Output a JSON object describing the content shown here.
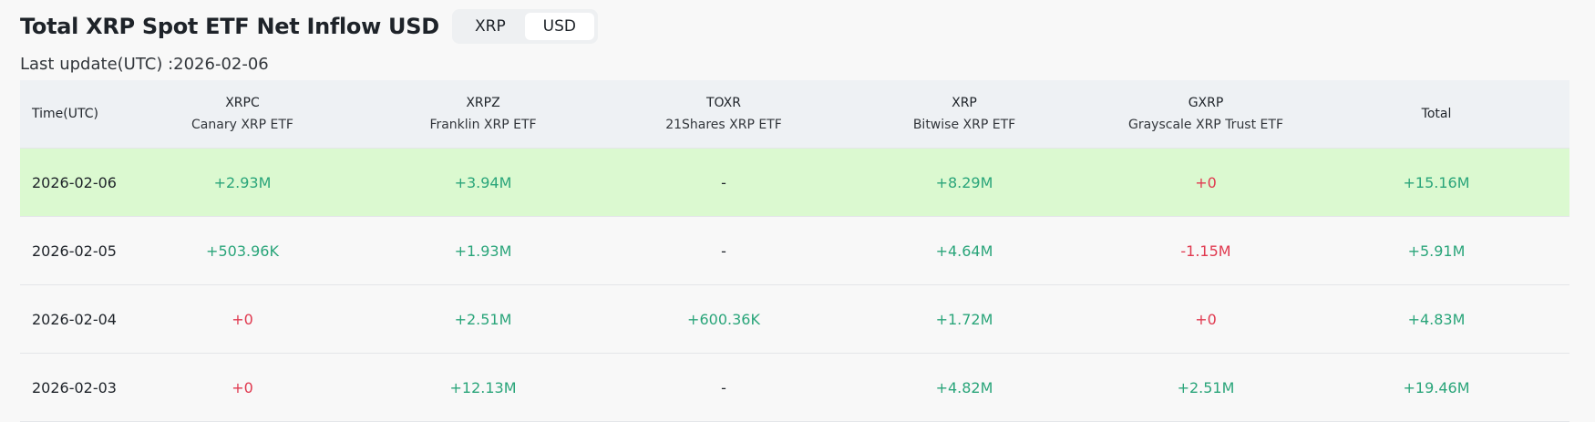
{
  "header": {
    "title": "Total XRP Spot ETF Net Inflow USD",
    "toggle": [
      {
        "label": "XRP",
        "active": false
      },
      {
        "label": "USD",
        "active": true
      }
    ],
    "last_update": "Last update(UTC) :2026-02-06"
  },
  "colors": {
    "positive": "#2aa57a",
    "negative": "#e0394f",
    "highlight_row": "#dbf9d0",
    "header_bg": "#eef1f4"
  },
  "table": {
    "columns": [
      {
        "ticker": "Time(UTC)",
        "name": ""
      },
      {
        "ticker": "XRPC",
        "name": "Canary XRP ETF"
      },
      {
        "ticker": "XRPZ",
        "name": "Franklin XRP ETF"
      },
      {
        "ticker": "TOXR",
        "name": "21Shares XRP ETF"
      },
      {
        "ticker": "XRP",
        "name": "Bitwise XRP ETF"
      },
      {
        "ticker": "GXRP",
        "name": "Grayscale XRP Trust ETF"
      },
      {
        "ticker": "Total",
        "name": ""
      }
    ],
    "rows": [
      {
        "date": "2026-02-06",
        "highlight": true,
        "cells": [
          {
            "value": "+2.93M",
            "tone": "pos"
          },
          {
            "value": "+3.94M",
            "tone": "pos"
          },
          {
            "value": "-",
            "tone": "neu"
          },
          {
            "value": "+8.29M",
            "tone": "pos"
          },
          {
            "value": "+0",
            "tone": "neg"
          },
          {
            "value": "+15.16M",
            "tone": "pos"
          }
        ]
      },
      {
        "date": "2026-02-05",
        "highlight": false,
        "cells": [
          {
            "value": "+503.96K",
            "tone": "pos"
          },
          {
            "value": "+1.93M",
            "tone": "pos"
          },
          {
            "value": "-",
            "tone": "neu"
          },
          {
            "value": "+4.64M",
            "tone": "pos"
          },
          {
            "value": "-1.15M",
            "tone": "neg"
          },
          {
            "value": "+5.91M",
            "tone": "pos"
          }
        ]
      },
      {
        "date": "2026-02-04",
        "highlight": false,
        "cells": [
          {
            "value": "+0",
            "tone": "neg"
          },
          {
            "value": "+2.51M",
            "tone": "pos"
          },
          {
            "value": "+600.36K",
            "tone": "pos"
          },
          {
            "value": "+1.72M",
            "tone": "pos"
          },
          {
            "value": "+0",
            "tone": "neg"
          },
          {
            "value": "+4.83M",
            "tone": "pos"
          }
        ]
      },
      {
        "date": "2026-02-03",
        "highlight": false,
        "cells": [
          {
            "value": "+0",
            "tone": "neg"
          },
          {
            "value": "+12.13M",
            "tone": "pos"
          },
          {
            "value": "-",
            "tone": "neu"
          },
          {
            "value": "+4.82M",
            "tone": "pos"
          },
          {
            "value": "+2.51M",
            "tone": "pos"
          },
          {
            "value": "+19.46M",
            "tone": "pos"
          }
        ]
      }
    ]
  }
}
